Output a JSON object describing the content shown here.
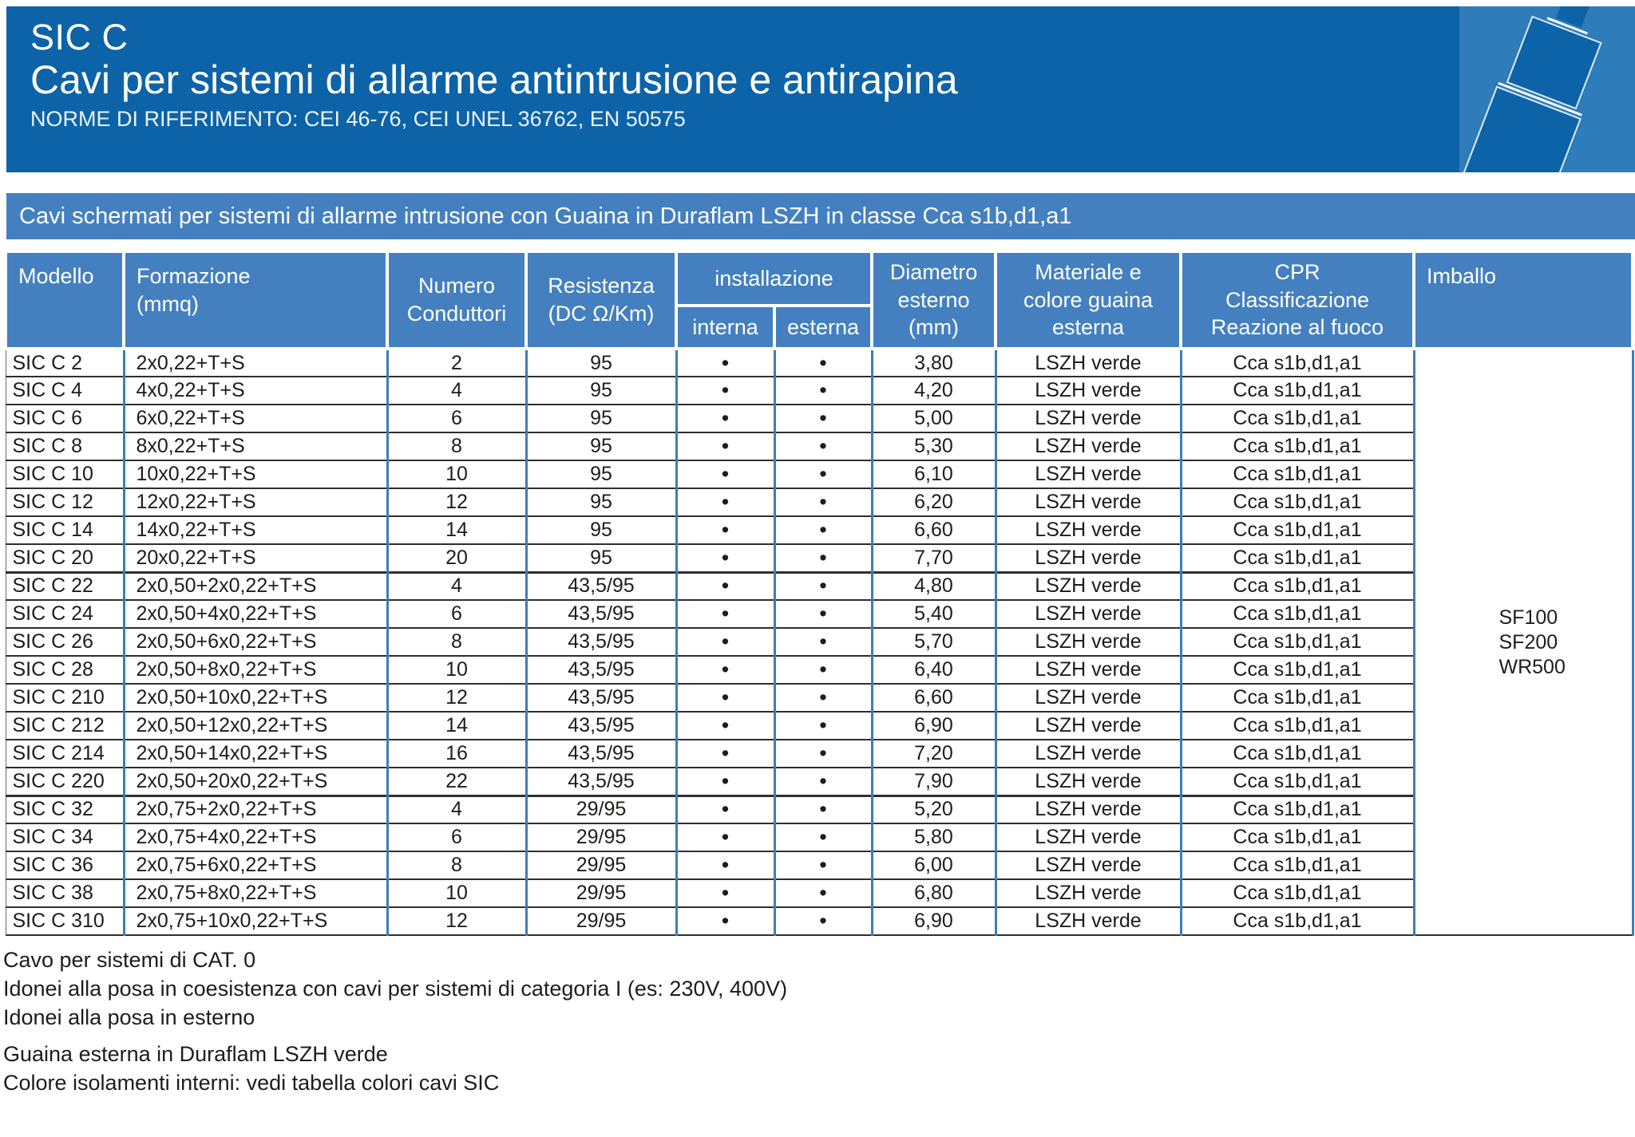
{
  "header": {
    "product": "SIC C",
    "title": "Cavi per sistemi di allarme antintrusione e antirapina",
    "norms": "NORME DI RIFERIMENTO: CEI 46-76, CEI UNEL 36762, EN 50575"
  },
  "banner": "Cavi schermati per sistemi di allarme intrusione con Guaina in Duraflam LSZH in classe Cca s1b,d1,a1",
  "table": {
    "columns": {
      "modello": "Modello",
      "formazione": "Formazione\n(mmq)",
      "conduttori": "Numero\nConduttori",
      "resistenza": "Resistenza\n(DC Ω/Km)",
      "installazione": "installazione",
      "interna": "interna",
      "esterna": "esterna",
      "diametro": "Diametro\nesterno\n(mm)",
      "guaina": "Materiale e\ncolore guaina\nesterna",
      "cpr": "CPR\nClassificazione\nReazione al fuoco",
      "imballo": "Imballo"
    },
    "dot_glyph": "•",
    "imballo_values": [
      "SF100",
      "SF200",
      "WR500"
    ],
    "rows": [
      {
        "modello": "SIC C 2",
        "formazione": "2x0,22+T+S",
        "conduttori": "2",
        "resistenza": "95",
        "interna": "•",
        "esterna": "•",
        "diametro": "3,80",
        "guaina": "LSZH verde",
        "cpr": "Cca s1b,d1,a1"
      },
      {
        "modello": "SIC C 4",
        "formazione": "4x0,22+T+S",
        "conduttori": "4",
        "resistenza": "95",
        "interna": "•",
        "esterna": "•",
        "diametro": "4,20",
        "guaina": "LSZH verde",
        "cpr": "Cca s1b,d1,a1"
      },
      {
        "modello": "SIC C 6",
        "formazione": "6x0,22+T+S",
        "conduttori": "6",
        "resistenza": "95",
        "interna": "•",
        "esterna": "•",
        "diametro": "5,00",
        "guaina": "LSZH verde",
        "cpr": "Cca s1b,d1,a1"
      },
      {
        "modello": "SIC C 8",
        "formazione": "8x0,22+T+S",
        "conduttori": "8",
        "resistenza": "95",
        "interna": "•",
        "esterna": "•",
        "diametro": "5,30",
        "guaina": "LSZH verde",
        "cpr": "Cca s1b,d1,a1"
      },
      {
        "modello": "SIC C 10",
        "formazione": "10x0,22+T+S",
        "conduttori": "10",
        "resistenza": "95",
        "interna": "•",
        "esterna": "•",
        "diametro": "6,10",
        "guaina": "LSZH verde",
        "cpr": "Cca s1b,d1,a1"
      },
      {
        "modello": "SIC C 12",
        "formazione": "12x0,22+T+S",
        "conduttori": "12",
        "resistenza": "95",
        "interna": "•",
        "esterna": "•",
        "diametro": "6,20",
        "guaina": "LSZH verde",
        "cpr": "Cca s1b,d1,a1"
      },
      {
        "modello": "SIC C 14",
        "formazione": "14x0,22+T+S",
        "conduttori": "14",
        "resistenza": "95",
        "interna": "•",
        "esterna": "•",
        "diametro": "6,60",
        "guaina": "LSZH verde",
        "cpr": "Cca s1b,d1,a1"
      },
      {
        "modello": "SIC C 20",
        "formazione": "20x0,22+T+S",
        "conduttori": "20",
        "resistenza": "95",
        "interna": "•",
        "esterna": "•",
        "diametro": "7,70",
        "guaina": "LSZH verde",
        "cpr": "Cca s1b,d1,a1"
      },
      {
        "modello": "SIC C 22",
        "formazione": "2x0,50+2x0,22+T+S",
        "conduttori": "4",
        "resistenza": "43,5/95",
        "interna": "•",
        "esterna": "•",
        "diametro": "4,80",
        "guaina": "LSZH verde",
        "cpr": "Cca s1b,d1,a1",
        "group_start": true
      },
      {
        "modello": "SIC C 24",
        "formazione": "2x0,50+4x0,22+T+S",
        "conduttori": "6",
        "resistenza": "43,5/95",
        "interna": "•",
        "esterna": "•",
        "diametro": "5,40",
        "guaina": "LSZH verde",
        "cpr": "Cca s1b,d1,a1"
      },
      {
        "modello": "SIC C 26",
        "formazione": "2x0,50+6x0,22+T+S",
        "conduttori": "8",
        "resistenza": "43,5/95",
        "interna": "•",
        "esterna": "•",
        "diametro": "5,70",
        "guaina": "LSZH verde",
        "cpr": "Cca s1b,d1,a1"
      },
      {
        "modello": "SIC C 28",
        "formazione": "2x0,50+8x0,22+T+S",
        "conduttori": "10",
        "resistenza": "43,5/95",
        "interna": "•",
        "esterna": "•",
        "diametro": "6,40",
        "guaina": "LSZH verde",
        "cpr": "Cca s1b,d1,a1"
      },
      {
        "modello": "SIC C 210",
        "formazione": "2x0,50+10x0,22+T+S",
        "conduttori": "12",
        "resistenza": "43,5/95",
        "interna": "•",
        "esterna": "•",
        "diametro": "6,60",
        "guaina": "LSZH verde",
        "cpr": "Cca s1b,d1,a1"
      },
      {
        "modello": "SIC C 212",
        "formazione": "2x0,50+12x0,22+T+S",
        "conduttori": "14",
        "resistenza": "43,5/95",
        "interna": "•",
        "esterna": "•",
        "diametro": "6,90",
        "guaina": "LSZH verde",
        "cpr": "Cca s1b,d1,a1"
      },
      {
        "modello": "SIC C 214",
        "formazione": "2x0,50+14x0,22+T+S",
        "conduttori": "16",
        "resistenza": "43,5/95",
        "interna": "•",
        "esterna": "•",
        "diametro": "7,20",
        "guaina": "LSZH verde",
        "cpr": "Cca s1b,d1,a1"
      },
      {
        "modello": "SIC C 220",
        "formazione": "2x0,50+20x0,22+T+S",
        "conduttori": "22",
        "resistenza": "43,5/95",
        "interna": "•",
        "esterna": "•",
        "diametro": "7,90",
        "guaina": "LSZH verde",
        "cpr": "Cca s1b,d1,a1"
      },
      {
        "modello": "SIC C 32",
        "formazione": "2x0,75+2x0,22+T+S",
        "conduttori": "4",
        "resistenza": "29/95",
        "interna": "•",
        "esterna": "•",
        "diametro": "5,20",
        "guaina": "LSZH verde",
        "cpr": "Cca s1b,d1,a1",
        "group_start": true
      },
      {
        "modello": "SIC C 34",
        "formazione": "2x0,75+4x0,22+T+S",
        "conduttori": "6",
        "resistenza": "29/95",
        "interna": "•",
        "esterna": "•",
        "diametro": "5,80",
        "guaina": "LSZH verde",
        "cpr": "Cca s1b,d1,a1"
      },
      {
        "modello": "SIC C 36",
        "formazione": "2x0,75+6x0,22+T+S",
        "conduttori": "8",
        "resistenza": "29/95",
        "interna": "•",
        "esterna": "•",
        "diametro": "6,00",
        "guaina": "LSZH verde",
        "cpr": "Cca s1b,d1,a1"
      },
      {
        "modello": "SIC C 38",
        "formazione": "2x0,75+8x0,22+T+S",
        "conduttori": "10",
        "resistenza": "29/95",
        "interna": "•",
        "esterna": "•",
        "diametro": "6,80",
        "guaina": "LSZH verde",
        "cpr": "Cca s1b,d1,a1"
      },
      {
        "modello": "SIC C 310",
        "formazione": "2x0,75+10x0,22+T+S",
        "conduttori": "12",
        "resistenza": "29/95",
        "interna": "•",
        "esterna": "•",
        "diametro": "6,90",
        "guaina": "LSZH verde",
        "cpr": "Cca s1b,d1,a1"
      }
    ]
  },
  "notes": [
    "Cavo per sistemi di CAT. 0",
    "Idonei alla posa in coesistenza con cavi per sistemi di categoria I (es: 230V, 400V)",
    "Idonei alla posa in esterno",
    "Guaina esterna in Duraflam LSZH verde",
    "Colore isolamenti interni: vedi tabella colori cavi SIC"
  ],
  "colors": {
    "header_blue": "#0d63a8",
    "band_blue": "#4480c0",
    "tile_blue": "#2e7cba",
    "table_border_blue": "#3b7dc0",
    "row_line_dark": "#2e2e2e",
    "text_dark": "#1d1d1b",
    "text_white": "#ffffff"
  }
}
